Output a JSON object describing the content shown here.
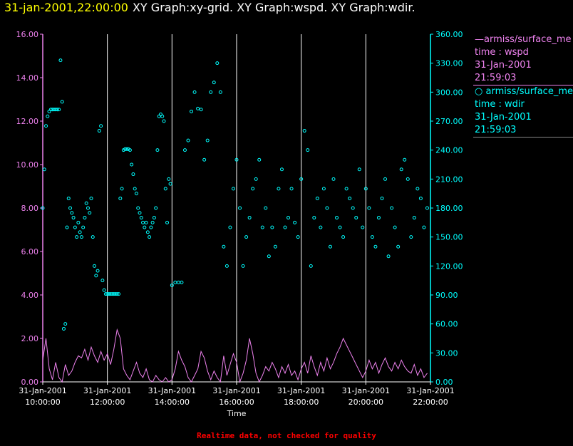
{
  "header": {
    "timestamp": "31-jan-2001,22:00:00",
    "graphs": "XY Graph:xy-grid.  XY Graph:wspd.  XY Graph:wdir."
  },
  "colors": {
    "wspd": "#ee82ee",
    "wdir": "#00ffff",
    "grid": "#ffffff",
    "background": "#000000"
  },
  "legend": [
    {
      "marker": "line",
      "name": "armiss/surface_me",
      "var": "time : wspd",
      "date": "31-Jan-2001",
      "time": "21:59:03"
    },
    {
      "marker": "circle",
      "name": "armiss/surface_me",
      "var": "time : wdir",
      "date": "31-Jan-2001",
      "time": "21:59:03"
    }
  ],
  "footer": "Realtime data, not checked for quality",
  "chart_data": {
    "type": "scatter",
    "xlabel": "Time",
    "x_unit": "hours",
    "x_ticks": [
      {
        "date": "31-Jan-2001",
        "time": "10:00:00",
        "value": 10
      },
      {
        "date": "31-Jan-2001",
        "time": "12:00:00",
        "value": 12
      },
      {
        "date": "31-Jan-2001",
        "time": "14:00:00",
        "value": 14
      },
      {
        "date": "31-Jan-2001",
        "time": "16:00:00",
        "value": 16
      },
      {
        "date": "31-Jan-2001",
        "time": "18:00:00",
        "value": 18
      },
      {
        "date": "31-Jan-2001",
        "time": "20:00:00",
        "value": 20
      },
      {
        "date": "31-Jan-2001",
        "time": "22:00:00",
        "value": 22
      }
    ],
    "xlim": [
      10,
      22
    ],
    "y_left": {
      "series": "wspd",
      "ylim": [
        0,
        16
      ],
      "ticks": [
        "0.00",
        "2.00",
        "4.00",
        "6.00",
        "8.00",
        "10.00",
        "12.00",
        "14.00",
        "16.00"
      ]
    },
    "y_right": {
      "series": "wdir",
      "ylim": [
        0,
        360
      ],
      "ticks": [
        "0.00",
        "30.00",
        "60.00",
        "90.00",
        "120.00",
        "150.00",
        "180.00",
        "210.00",
        "240.00",
        "270.00",
        "300.00",
        "330.00",
        "360.00"
      ]
    },
    "grid": "vertical lines at each x tick",
    "series": [
      {
        "key": "wspd",
        "axis": "left",
        "style": "line",
        "x": [
          10.0,
          10.1,
          10.2,
          10.3,
          10.4,
          10.5,
          10.6,
          10.7,
          10.8,
          10.9,
          11.0,
          11.1,
          11.2,
          11.3,
          11.4,
          11.5,
          11.6,
          11.7,
          11.8,
          11.9,
          12.0,
          12.1,
          12.2,
          12.3,
          12.4,
          12.5,
          12.6,
          12.7,
          12.8,
          12.9,
          13.0,
          13.1,
          13.2,
          13.3,
          13.4,
          13.5,
          13.6,
          13.7,
          13.8,
          13.9,
          14.0,
          14.1,
          14.2,
          14.3,
          14.4,
          14.5,
          14.6,
          14.7,
          14.8,
          14.9,
          15.0,
          15.1,
          15.2,
          15.3,
          15.4,
          15.5,
          15.6,
          15.7,
          15.8,
          15.9,
          16.0,
          16.1,
          16.2,
          16.3,
          16.4,
          16.5,
          16.6,
          16.7,
          16.8,
          16.9,
          17.0,
          17.1,
          17.2,
          17.3,
          17.4,
          17.5,
          17.6,
          17.7,
          17.8,
          17.9,
          18.0,
          18.1,
          18.2,
          18.3,
          18.4,
          18.5,
          18.6,
          18.7,
          18.8,
          18.9,
          19.0,
          19.1,
          19.2,
          19.3,
          19.4,
          19.5,
          19.6,
          19.7,
          19.8,
          19.9,
          20.0,
          20.1,
          20.2,
          20.3,
          20.4,
          20.5,
          20.6,
          20.7,
          20.8,
          20.9,
          21.0,
          21.1,
          21.2,
          21.3,
          21.4,
          21.5,
          21.6,
          21.7,
          21.8,
          21.9
        ],
        "y": [
          1.0,
          2.0,
          0.6,
          0.1,
          0.9,
          0.2,
          0.0,
          0.8,
          0.3,
          0.5,
          0.9,
          1.2,
          1.1,
          1.5,
          1.0,
          1.6,
          1.2,
          0.9,
          1.4,
          1.0,
          1.3,
          0.8,
          1.5,
          2.4,
          2.0,
          0.6,
          0.3,
          0.1,
          0.5,
          0.9,
          0.4,
          0.2,
          0.6,
          0.1,
          0.0,
          0.3,
          0.1,
          0.0,
          0.2,
          0.0,
          0.1,
          0.6,
          1.4,
          1.0,
          0.7,
          0.2,
          0.0,
          0.3,
          0.6,
          1.4,
          1.1,
          0.5,
          0.1,
          0.5,
          0.2,
          0.0,
          1.2,
          0.3,
          0.8,
          1.3,
          0.9,
          0.0,
          0.4,
          1.0,
          2.0,
          1.3,
          0.4,
          0.0,
          0.3,
          0.7,
          0.5,
          0.9,
          0.6,
          0.2,
          0.7,
          0.4,
          0.8,
          0.3,
          0.5,
          0.1,
          0.6,
          0.9,
          0.4,
          1.2,
          0.7,
          0.3,
          0.9,
          0.5,
          1.1,
          0.6,
          0.9,
          1.3,
          1.6,
          2.0,
          1.7,
          1.4,
          1.1,
          0.8,
          0.5,
          0.2,
          0.5,
          1.0,
          0.6,
          0.9,
          0.4,
          0.8,
          1.1,
          0.7,
          0.5,
          0.9,
          0.6,
          1.0,
          0.7,
          0.5,
          0.4,
          0.8,
          0.3,
          0.6,
          0.2,
          0.4
        ]
      },
      {
        "key": "wdir",
        "axis": "right",
        "style": "markers",
        "x": [
          10.0,
          10.05,
          10.1,
          10.15,
          10.2,
          10.25,
          10.3,
          10.35,
          10.4,
          10.45,
          10.5,
          10.55,
          10.6,
          10.65,
          10.7,
          10.75,
          10.8,
          10.85,
          10.9,
          10.95,
          11.0,
          11.05,
          11.1,
          11.15,
          11.2,
          11.25,
          11.3,
          11.35,
          11.4,
          11.45,
          11.5,
          11.55,
          11.6,
          11.65,
          11.7,
          11.75,
          11.8,
          11.85,
          11.9,
          11.95,
          12.0,
          12.05,
          12.1,
          12.15,
          12.2,
          12.25,
          12.3,
          12.35,
          12.4,
          12.45,
          12.5,
          12.55,
          12.6,
          12.65,
          12.7,
          12.75,
          12.8,
          12.85,
          12.9,
          12.95,
          13.0,
          13.05,
          13.1,
          13.15,
          13.2,
          13.25,
          13.3,
          13.35,
          13.4,
          13.45,
          13.5,
          13.55,
          13.6,
          13.65,
          13.7,
          13.75,
          13.8,
          13.85,
          13.9,
          13.95,
          14.0,
          14.1,
          14.2,
          14.3,
          14.4,
          14.5,
          14.6,
          14.7,
          14.8,
          14.9,
          15.0,
          15.1,
          15.2,
          15.3,
          15.4,
          15.5,
          15.6,
          15.7,
          15.8,
          15.9,
          16.0,
          16.1,
          16.2,
          16.3,
          16.4,
          16.5,
          16.6,
          16.7,
          16.8,
          16.9,
          17.0,
          17.1,
          17.2,
          17.3,
          17.4,
          17.5,
          17.6,
          17.7,
          17.8,
          17.9,
          18.0,
          18.1,
          18.2,
          18.3,
          18.4,
          18.5,
          18.6,
          18.7,
          18.8,
          18.9,
          19.0,
          19.1,
          19.2,
          19.3,
          19.4,
          19.5,
          19.6,
          19.7,
          19.8,
          19.9,
          20.0,
          20.1,
          20.2,
          20.3,
          20.4,
          20.5,
          20.6,
          20.7,
          20.8,
          20.9,
          21.0,
          21.1,
          21.2,
          21.3,
          21.4,
          21.5,
          21.6,
          21.7,
          21.8,
          21.9
        ],
        "y": [
          180,
          220,
          265,
          275,
          280,
          282,
          282,
          282,
          282,
          282,
          282,
          333,
          290,
          55,
          60,
          160,
          190,
          180,
          175,
          170,
          160,
          150,
          165,
          155,
          150,
          160,
          170,
          185,
          180,
          175,
          190,
          150,
          120,
          110,
          115,
          260,
          265,
          105,
          95,
          91,
          91,
          91,
          91,
          91,
          91,
          91,
          91,
          91,
          190,
          200,
          240,
          241,
          241,
          241,
          240,
          225,
          215,
          200,
          195,
          180,
          175,
          170,
          165,
          160,
          165,
          155,
          150,
          160,
          165,
          170,
          180,
          240,
          275,
          277,
          275,
          270,
          200,
          165,
          210,
          205,
          100,
          103,
          103,
          103,
          240,
          250,
          280,
          300,
          283,
          282,
          230,
          250,
          300,
          310,
          330,
          300,
          140,
          120,
          160,
          200,
          230,
          180,
          120,
          150,
          170,
          200,
          210,
          230,
          160,
          180,
          130,
          160,
          140,
          200,
          220,
          160,
          170,
          200,
          165,
          150,
          210,
          260,
          240,
          120,
          170,
          190,
          160,
          200,
          180,
          140,
          210,
          170,
          160,
          150,
          200,
          190,
          180,
          170,
          220,
          160,
          200,
          180,
          150,
          140,
          170,
          190,
          210,
          130,
          180,
          160,
          140,
          220,
          230,
          210,
          150,
          170,
          200,
          190,
          160,
          180
        ]
      }
    ]
  }
}
